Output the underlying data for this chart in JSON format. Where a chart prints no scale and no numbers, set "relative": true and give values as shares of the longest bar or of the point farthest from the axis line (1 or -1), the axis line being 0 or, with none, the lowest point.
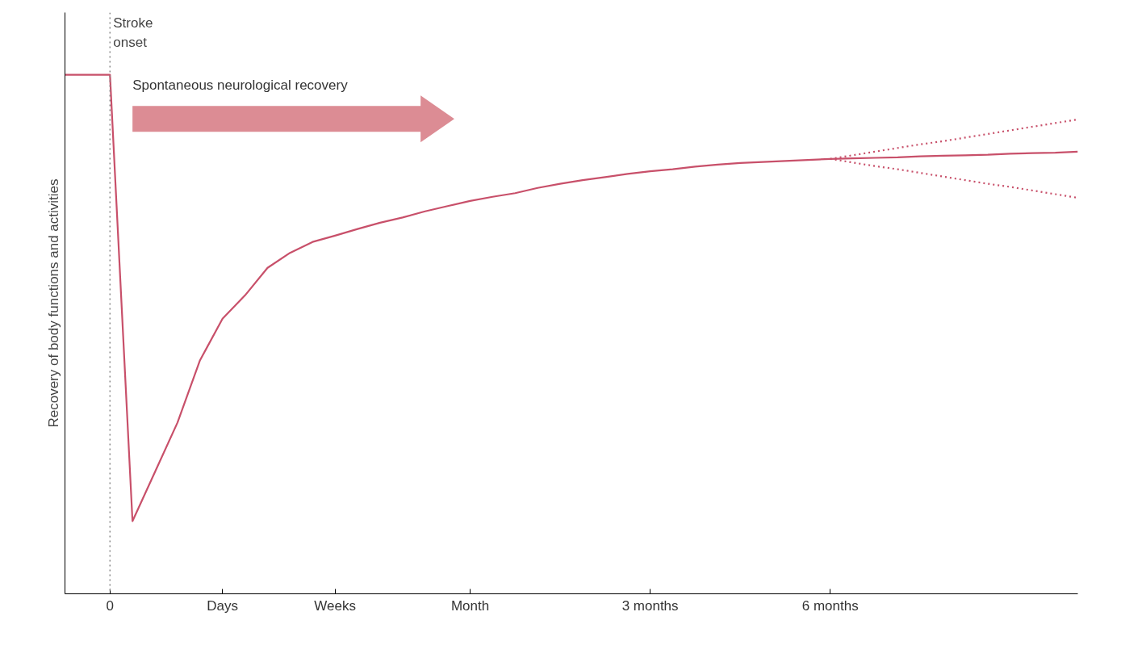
{
  "chart_data": {
    "type": "line",
    "relative": true,
    "ylabel": "Recovery of body functions and activities",
    "categories": [
      null,
      null,
      "0",
      null,
      null,
      null,
      null,
      "Days",
      null,
      null,
      null,
      null,
      "Weeks",
      null,
      null,
      null,
      null,
      null,
      "Month",
      null,
      null,
      null,
      null,
      null,
      null,
      null,
      "3 months",
      null,
      null,
      null,
      null,
      null,
      null,
      null,
      "6 months",
      null,
      null,
      null,
      null,
      null,
      null,
      null,
      null,
      null,
      null,
      null
    ],
    "tick_labels": "x",
    "ref_lines": [
      {
        "axis": "x",
        "value": "0",
        "label": "Stroke onset",
        "color": "#888888",
        "line_style": "dotted"
      }
    ],
    "annotations": [
      "Spontaneous neurological recovery"
    ],
    "series": [
      {
        "color": "#c8506a",
        "line_style": "solid",
        "values": [
          1.0,
          1.0,
          1.0,
          0.14,
          0.235,
          0.33,
          0.45,
          0.53,
          0.575,
          0.628,
          0.657,
          0.678,
          0.69,
          0.703,
          0.715,
          0.725,
          0.737,
          0.747,
          0.757,
          0.765,
          0.772,
          0.782,
          0.79,
          0.797,
          0.803,
          0.809,
          0.814,
          0.818,
          0.823,
          0.827,
          0.83,
          0.832,
          0.834,
          0.836,
          0.838,
          0.839,
          0.84,
          0.841,
          0.843,
          0.844,
          0.845,
          0.846,
          0.848,
          0.849,
          0.85,
          0.852
        ]
      },
      {
        "color": "#c8506a",
        "line_style": "dotted",
        "values": [
          null,
          null,
          null,
          null,
          null,
          null,
          null,
          null,
          null,
          null,
          null,
          null,
          null,
          null,
          null,
          null,
          null,
          null,
          null,
          null,
          null,
          null,
          null,
          null,
          null,
          null,
          null,
          null,
          null,
          null,
          null,
          null,
          null,
          null,
          0.838,
          0.845,
          0.852,
          0.859,
          0.866,
          0.872,
          0.879,
          0.886,
          0.893,
          0.9,
          0.907,
          0.914
        ]
      },
      {
        "color": "#c8506a",
        "line_style": "dotted",
        "values": [
          null,
          null,
          null,
          null,
          null,
          null,
          null,
          null,
          null,
          null,
          null,
          null,
          null,
          null,
          null,
          null,
          null,
          null,
          null,
          null,
          null,
          null,
          null,
          null,
          null,
          null,
          null,
          null,
          null,
          null,
          null,
          null,
          null,
          null,
          0.838,
          0.831,
          0.824,
          0.818,
          0.811,
          0.804,
          0.797,
          0.79,
          0.784,
          0.777,
          0.77,
          0.763
        ]
      }
    ]
  }
}
